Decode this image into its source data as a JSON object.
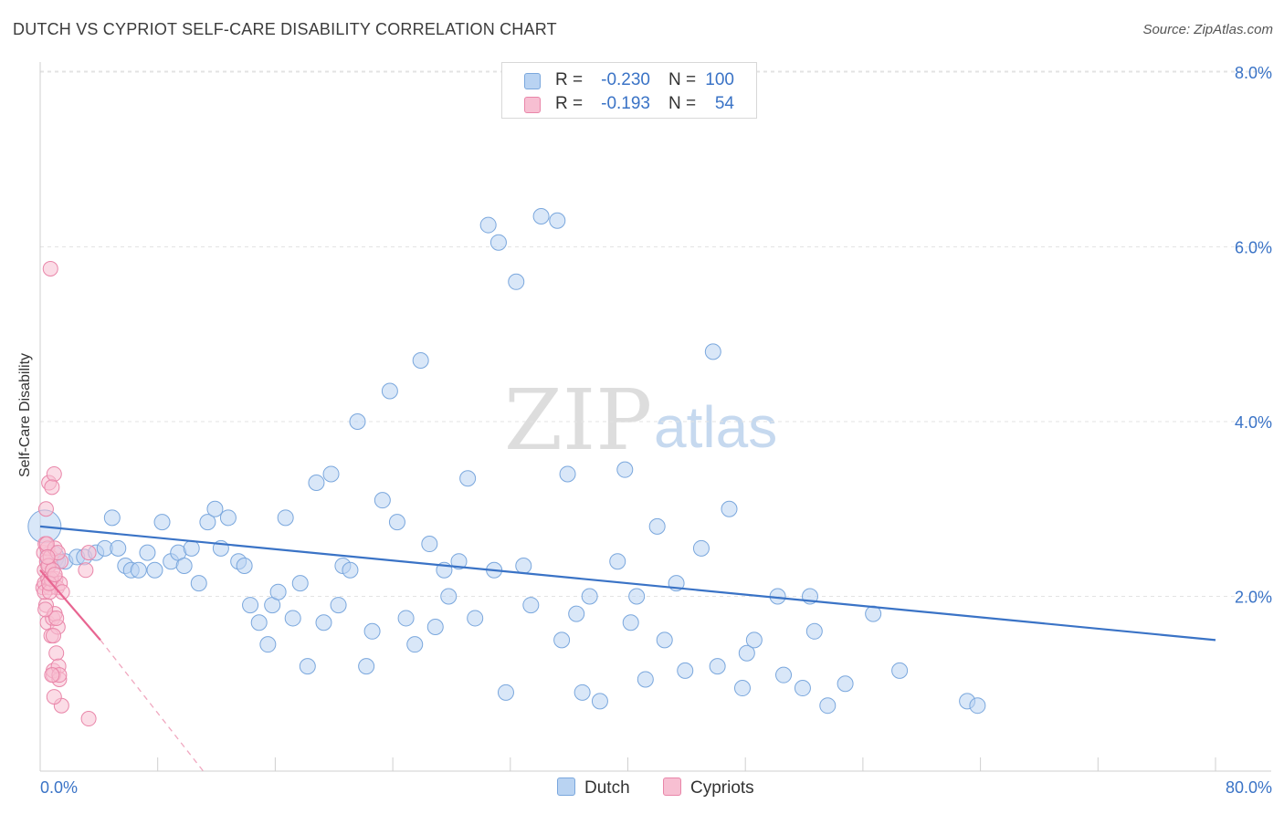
{
  "title": "DUTCH VS CYPRIOT SELF-CARE DISABILITY CORRELATION CHART",
  "source": "Source: ZipAtlas.com",
  "watermark": {
    "part1": "ZIP",
    "part2": "atlas"
  },
  "legend": {
    "rows": [
      {
        "r_label": "R =",
        "r_value": "-0.230",
        "n_label": "N =",
        "n_value": "100",
        "color_fill": "#b9d3f2",
        "color_stroke": "#7aa7dd"
      },
      {
        "r_label": "R =",
        "r_value": "-0.193",
        "n_label": "N =",
        "n_value": "54",
        "color_fill": "#f7bfd2",
        "color_stroke": "#e986a9"
      }
    ]
  },
  "bottom_legend": [
    {
      "label": "Dutch",
      "color_fill": "#b9d3f2",
      "color_stroke": "#7aa7dd"
    },
    {
      "label": "Cypriots",
      "color_fill": "#f7bfd2",
      "color_stroke": "#e986a9"
    }
  ],
  "colors": {
    "dutch_line": "#3a73c6",
    "cypriot_line": "#e86591",
    "tick_text": "#3a73c6",
    "grid": "#e3e3e3"
  },
  "chart_data": {
    "type": "scatter",
    "title": "DUTCH VS CYPRIOT SELF-CARE DISABILITY CORRELATION CHART",
    "xlabel": "",
    "ylabel": "Self-Care Disability",
    "xlim": [
      0,
      80
    ],
    "ylim": [
      0,
      8.3
    ],
    "x_tick_labels": [
      "0.0%",
      "80.0%"
    ],
    "y_ticks": [
      2,
      4,
      6,
      8
    ],
    "y_tick_labels": [
      "2.0%",
      "4.0%",
      "6.0%",
      "8.0%"
    ],
    "grid": "horizontal dashed",
    "legend_placement": "top-center",
    "series": [
      {
        "name": "Dutch",
        "r": -0.23,
        "n": 100,
        "trend": {
          "x": [
            0,
            80
          ],
          "y": [
            2.8,
            1.5
          ]
        },
        "points": [
          [
            0.3,
            2.8
          ],
          [
            0.8,
            2.45
          ],
          [
            1.2,
            2.4
          ],
          [
            1.7,
            2.4
          ],
          [
            2.5,
            2.45
          ],
          [
            3.0,
            2.45
          ],
          [
            3.8,
            2.5
          ],
          [
            4.4,
            2.55
          ],
          [
            4.9,
            2.9
          ],
          [
            5.3,
            2.55
          ],
          [
            5.8,
            2.35
          ],
          [
            6.2,
            2.3
          ],
          [
            6.7,
            2.3
          ],
          [
            7.3,
            2.5
          ],
          [
            7.8,
            2.3
          ],
          [
            8.3,
            2.85
          ],
          [
            8.9,
            2.4
          ],
          [
            9.4,
            2.5
          ],
          [
            9.8,
            2.35
          ],
          [
            10.3,
            2.55
          ],
          [
            10.8,
            2.15
          ],
          [
            11.4,
            2.85
          ],
          [
            11.9,
            3.0
          ],
          [
            12.3,
            2.55
          ],
          [
            12.8,
            2.9
          ],
          [
            13.5,
            2.4
          ],
          [
            13.9,
            2.35
          ],
          [
            14.3,
            1.9
          ],
          [
            14.9,
            1.7
          ],
          [
            15.5,
            1.45
          ],
          [
            15.8,
            1.9
          ],
          [
            16.2,
            2.05
          ],
          [
            16.7,
            2.9
          ],
          [
            17.2,
            1.75
          ],
          [
            17.7,
            2.15
          ],
          [
            18.2,
            1.2
          ],
          [
            18.8,
            3.3
          ],
          [
            19.3,
            1.7
          ],
          [
            19.8,
            3.4
          ],
          [
            20.3,
            1.9
          ],
          [
            20.6,
            2.35
          ],
          [
            21.1,
            2.3
          ],
          [
            21.6,
            4.0
          ],
          [
            22.2,
            1.2
          ],
          [
            22.6,
            1.6
          ],
          [
            23.3,
            3.1
          ],
          [
            23.8,
            4.35
          ],
          [
            24.3,
            2.85
          ],
          [
            24.9,
            1.75
          ],
          [
            25.5,
            1.45
          ],
          [
            25.9,
            4.7
          ],
          [
            26.5,
            2.6
          ],
          [
            26.9,
            1.65
          ],
          [
            27.5,
            2.3
          ],
          [
            27.8,
            2.0
          ],
          [
            28.5,
            2.4
          ],
          [
            29.1,
            3.35
          ],
          [
            29.6,
            1.75
          ],
          [
            30.5,
            6.25
          ],
          [
            30.9,
            2.3
          ],
          [
            31.2,
            6.05
          ],
          [
            31.7,
            0.9
          ],
          [
            32.4,
            5.6
          ],
          [
            32.9,
            2.35
          ],
          [
            33.4,
            1.9
          ],
          [
            34.1,
            6.35
          ],
          [
            35.2,
            6.3
          ],
          [
            35.5,
            1.5
          ],
          [
            35.9,
            3.4
          ],
          [
            36.5,
            1.8
          ],
          [
            36.9,
            0.9
          ],
          [
            37.4,
            2.0
          ],
          [
            38.1,
            0.8
          ],
          [
            39.3,
            2.4
          ],
          [
            39.8,
            3.45
          ],
          [
            40.2,
            1.7
          ],
          [
            40.6,
            2.0
          ],
          [
            41.2,
            1.05
          ],
          [
            42.0,
            2.8
          ],
          [
            42.5,
            1.5
          ],
          [
            43.3,
            2.15
          ],
          [
            43.9,
            1.15
          ],
          [
            45.0,
            2.55
          ],
          [
            45.8,
            4.8
          ],
          [
            46.1,
            1.2
          ],
          [
            46.9,
            3.0
          ],
          [
            47.8,
            0.95
          ],
          [
            48.1,
            1.35
          ],
          [
            48.6,
            1.5
          ],
          [
            50.2,
            2.0
          ],
          [
            50.6,
            1.1
          ],
          [
            51.9,
            0.95
          ],
          [
            52.4,
            2.0
          ],
          [
            52.7,
            1.6
          ],
          [
            53.6,
            0.75
          ],
          [
            54.8,
            1.0
          ],
          [
            56.7,
            1.8
          ],
          [
            58.5,
            1.15
          ],
          [
            63.1,
            0.8
          ],
          [
            63.8,
            0.75
          ]
        ]
      },
      {
        "name": "Cypriots",
        "r": -0.193,
        "n": 54,
        "trend": {
          "x": [
            0,
            4.1
          ],
          "y": [
            2.3,
            1.5
          ]
        },
        "trend_extension": {
          "x": [
            4.1,
            11.1
          ],
          "y": [
            1.5,
            0
          ]
        },
        "points": [
          [
            0.2,
            2.1
          ],
          [
            0.25,
            2.5
          ],
          [
            0.3,
            2.3
          ],
          [
            0.35,
            2.6
          ],
          [
            0.3,
            2.15
          ],
          [
            0.4,
            3.0
          ],
          [
            0.45,
            2.4
          ],
          [
            0.5,
            2.55
          ],
          [
            0.4,
            1.9
          ],
          [
            0.55,
            2.2
          ],
          [
            0.6,
            3.3
          ],
          [
            0.65,
            2.1
          ],
          [
            0.5,
            1.7
          ],
          [
            0.7,
            2.45
          ],
          [
            0.75,
            1.55
          ],
          [
            0.6,
            2.35
          ],
          [
            0.8,
            2.15
          ],
          [
            0.85,
            1.75
          ],
          [
            0.9,
            1.1
          ],
          [
            0.95,
            3.4
          ],
          [
            1.0,
            2.55
          ],
          [
            1.05,
            2.2
          ],
          [
            1.1,
            1.35
          ],
          [
            1.15,
            2.1
          ],
          [
            1.0,
            1.8
          ],
          [
            1.2,
            1.65
          ],
          [
            0.9,
            1.15
          ],
          [
            1.25,
            1.2
          ],
          [
            1.3,
            1.05
          ],
          [
            1.35,
            2.15
          ],
          [
            1.4,
            2.4
          ],
          [
            1.45,
            0.75
          ],
          [
            1.5,
            2.05
          ],
          [
            0.7,
            5.75
          ],
          [
            0.8,
            3.25
          ],
          [
            0.3,
            2.05
          ],
          [
            0.45,
            2.6
          ],
          [
            0.55,
            2.35
          ],
          [
            0.65,
            2.05
          ],
          [
            0.75,
            2.2
          ],
          [
            0.85,
            2.3
          ],
          [
            0.95,
            0.85
          ],
          [
            1.1,
            1.75
          ],
          [
            1.2,
            2.5
          ],
          [
            1.3,
            1.1
          ],
          [
            0.35,
            1.85
          ],
          [
            0.5,
            2.45
          ],
          [
            0.6,
            2.15
          ],
          [
            0.8,
            1.1
          ],
          [
            0.9,
            1.55
          ],
          [
            1.0,
            2.25
          ],
          [
            3.1,
            2.3
          ],
          [
            3.3,
            2.5
          ],
          [
            3.3,
            0.6
          ]
        ]
      }
    ]
  }
}
